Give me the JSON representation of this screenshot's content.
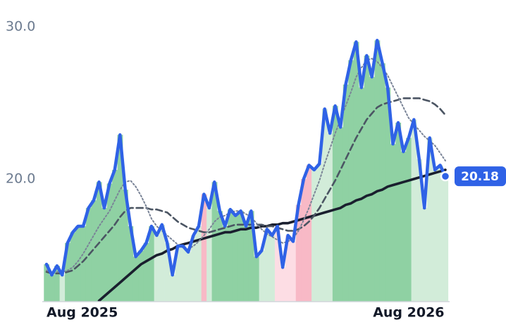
{
  "chart_data": {
    "type": "line",
    "categories": [
      "Aug 2025",
      null,
      null,
      null,
      null,
      null,
      null,
      null,
      null,
      null,
      null,
      null,
      null,
      null,
      null,
      null,
      null,
      null,
      null,
      null,
      null,
      null,
      null,
      null,
      null,
      null,
      null,
      null,
      null,
      null,
      null,
      null,
      null,
      null,
      null,
      null,
      null,
      null,
      null,
      null,
      null,
      null,
      null,
      null,
      null,
      null,
      null,
      null,
      null,
      null,
      null,
      null,
      null,
      null,
      null,
      null,
      null,
      null,
      null,
      null,
      null,
      null,
      null,
      null,
      null,
      null,
      null,
      null,
      null,
      "Aug 2026",
      null,
      null,
      null,
      null,
      null,
      null,
      null
    ],
    "series": [
      {
        "color": "#2f62e6",
        "dash": "solid",
        "width": 4.5,
        "values": [
          14.4,
          13.7,
          14.3,
          13.7,
          15.8,
          16.5,
          16.9,
          16.9,
          18.1,
          18.6,
          19.8,
          18.1,
          19.7,
          20.6,
          22.9,
          19.3,
          16.9,
          14.9,
          15.3,
          15.8,
          16.9,
          16.3,
          17.0,
          15.8,
          13.7,
          15.6,
          15.6,
          15.2,
          16.3,
          16.9,
          19.0,
          18.1,
          19.8,
          17.9,
          16.9,
          18.0,
          17.6,
          17.9,
          16.9,
          17.9,
          14.9,
          15.3,
          16.7,
          16.3,
          16.9,
          14.2,
          16.3,
          15.9,
          18.3,
          20.0,
          20.9,
          20.6,
          21.0,
          24.6,
          23.0,
          24.8,
          23.4,
          26.2,
          27.8,
          29.0,
          26.0,
          28.1,
          26.7,
          29.1,
          27.6,
          26.0,
          22.3,
          23.7,
          21.8,
          22.7,
          23.9,
          21.3,
          18.1,
          22.7,
          20.6,
          20.9,
          20.18
        ]
      },
      {
        "color": "#7a8497",
        "dash": "dotted",
        "width": 2,
        "values": [
          14.0,
          13.9,
          13.9,
          13.9,
          14.0,
          14.2,
          14.6,
          15.1,
          15.7,
          16.3,
          16.9,
          17.4,
          17.9,
          18.6,
          19.3,
          19.8,
          19.9,
          19.5,
          18.9,
          18.2,
          17.4,
          16.9,
          16.6,
          16.3,
          16.0,
          15.7,
          15.5,
          15.4,
          15.6,
          15.9,
          16.3,
          16.7,
          17.2,
          17.5,
          17.6,
          17.8,
          17.9,
          17.9,
          17.7,
          17.5,
          17.1,
          16.7,
          16.4,
          16.2,
          16.0,
          15.8,
          15.9,
          16.1,
          16.6,
          17.3,
          18.1,
          19.0,
          19.9,
          21.0,
          22.0,
          23.0,
          23.9,
          24.8,
          25.7,
          26.7,
          27.3,
          27.8,
          27.9,
          27.7,
          27.3,
          26.8,
          26.1,
          25.4,
          24.7,
          24.0,
          23.6,
          23.2,
          22.8,
          22.5,
          22.2,
          21.7,
          21.2
        ]
      },
      {
        "color": "#4b5563",
        "dash": "dashed",
        "width": 2.6,
        "values": [
          13.9,
          13.8,
          13.8,
          13.8,
          13.9,
          14.0,
          14.3,
          14.6,
          15.0,
          15.4,
          15.8,
          16.2,
          16.6,
          17.0,
          17.5,
          17.9,
          18.1,
          18.1,
          18.1,
          18.1,
          18.0,
          18.0,
          17.9,
          17.8,
          17.5,
          17.2,
          17.0,
          16.8,
          16.7,
          16.6,
          16.5,
          16.5,
          16.6,
          16.7,
          16.8,
          16.9,
          17.0,
          17.0,
          17.0,
          17.0,
          17.0,
          17.0,
          16.9,
          16.9,
          16.8,
          16.7,
          16.6,
          16.6,
          16.7,
          16.9,
          17.2,
          17.6,
          18.1,
          18.7,
          19.3,
          19.9,
          20.6,
          21.3,
          22.0,
          22.7,
          23.3,
          23.9,
          24.3,
          24.7,
          24.9,
          25.0,
          25.1,
          25.2,
          25.3,
          25.3,
          25.3,
          25.3,
          25.2,
          25.1,
          24.9,
          24.6,
          24.2
        ]
      },
      {
        "color": "#1a1f2e",
        "dash": "solid",
        "width": 3.6,
        "values": [
          null,
          null,
          null,
          null,
          null,
          null,
          null,
          null,
          null,
          null,
          12.0,
          12.3,
          12.6,
          12.9,
          13.2,
          13.5,
          13.8,
          14.1,
          14.4,
          14.6,
          14.8,
          15.0,
          15.1,
          15.3,
          15.4,
          15.6,
          15.7,
          15.8,
          15.9,
          16.0,
          16.1,
          16.2,
          16.3,
          16.4,
          16.5,
          16.5,
          16.6,
          16.7,
          16.7,
          16.8,
          16.8,
          16.9,
          16.9,
          17.0,
          17.0,
          17.1,
          17.1,
          17.2,
          17.3,
          17.4,
          17.5,
          17.6,
          17.7,
          17.8,
          17.9,
          18.0,
          18.1,
          18.3,
          18.4,
          18.6,
          18.7,
          18.9,
          19.0,
          19.2,
          19.3,
          19.5,
          19.6,
          19.7,
          19.8,
          19.9,
          20.0,
          20.1,
          20.2,
          20.3,
          20.4,
          20.5,
          20.6
        ]
      }
    ],
    "bands": [
      {
        "from": 0,
        "to": 2,
        "color": "#8fd1a3"
      },
      {
        "from": 3,
        "to": 3,
        "color": "#d2ecd9"
      },
      {
        "from": 4,
        "to": 20,
        "color": "#8fd1a3"
      },
      {
        "from": 21,
        "to": 29,
        "color": "#d2ecd9"
      },
      {
        "from": 30,
        "to": 30,
        "color": "#f8b9c6"
      },
      {
        "from": 31,
        "to": 31,
        "color": "#d2ecd9"
      },
      {
        "from": 32,
        "to": 40,
        "color": "#8fd1a3"
      },
      {
        "from": 41,
        "to": 43,
        "color": "#d2ecd9"
      },
      {
        "from": 44,
        "to": 47,
        "color": "#fddde4"
      },
      {
        "from": 48,
        "to": 50,
        "color": "#f8b9c6"
      },
      {
        "from": 51,
        "to": 54,
        "color": "#d2ecd9"
      },
      {
        "from": 55,
        "to": 69,
        "color": "#8fd1a3"
      },
      {
        "from": 70,
        "to": 76,
        "color": "#d2ecd9"
      }
    ],
    "ylim": [
      11.95,
      31.75
    ],
    "yticks": [
      {
        "value": 20,
        "label": "20.0"
      },
      {
        "value": 30,
        "label": "30.0"
      }
    ],
    "grid": false
  }
}
